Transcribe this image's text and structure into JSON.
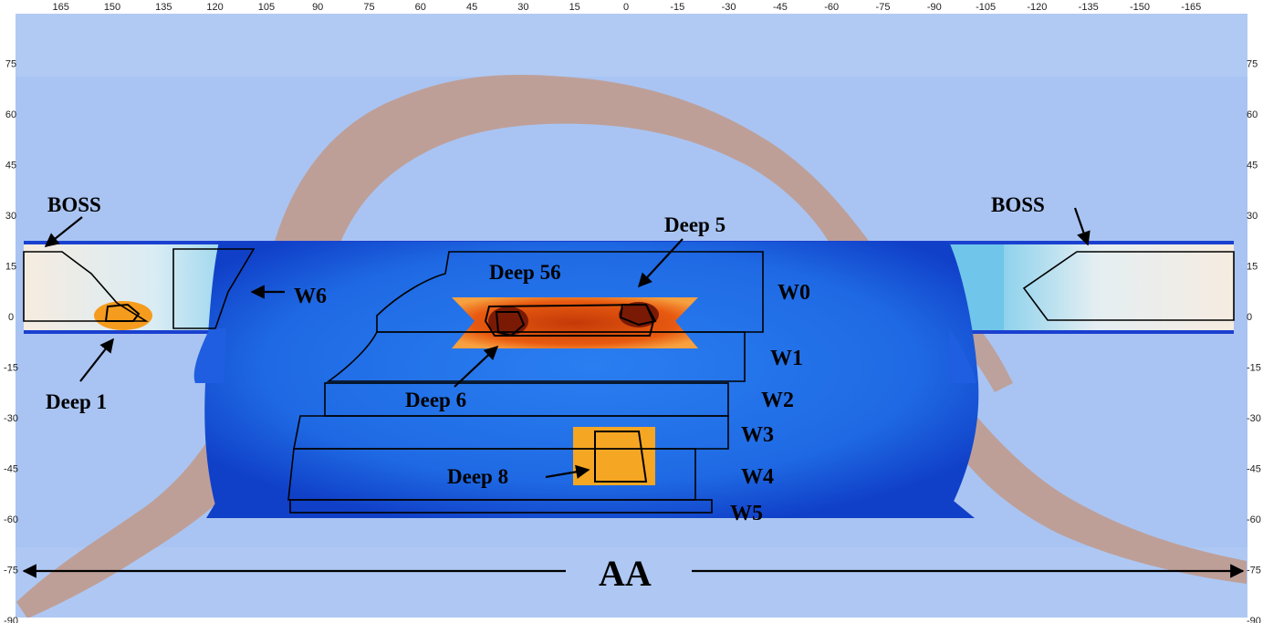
{
  "map": {
    "lon_ticks": [
      "165",
      "150",
      "135",
      "120",
      "105",
      "90",
      "75",
      "60",
      "45",
      "30",
      "15",
      "0",
      "-15",
      "-30",
      "-45",
      "-60",
      "-75",
      "-90",
      "-105",
      "-120",
      "-135",
      "-150",
      "-165"
    ],
    "lat_ticks": [
      "75",
      "60",
      "45",
      "30",
      "15",
      "0",
      "-15",
      "-30",
      "-45",
      "-60",
      "-75",
      "-90"
    ],
    "colors": {
      "background": "#a9c4f2",
      "dust": "#bf9d92",
      "survey_blue": "#1c64e0",
      "boss_fill": "#f4e9dc",
      "deep_orange": "#e85a10",
      "deep_yellow": "#f5a623",
      "outline": "#000000"
    },
    "labels": {
      "boss_left": "BOSS",
      "boss_right": "BOSS",
      "deep1": "Deep 1",
      "deep5": "Deep 5",
      "deep56": "Deep 56",
      "deep6": "Deep 6",
      "deep8": "Deep 8",
      "w0": "W0",
      "w1": "W1",
      "w2": "W2",
      "w3": "W3",
      "w4": "W4",
      "w5": "W5",
      "w6": "W6",
      "aa": "AA"
    }
  }
}
